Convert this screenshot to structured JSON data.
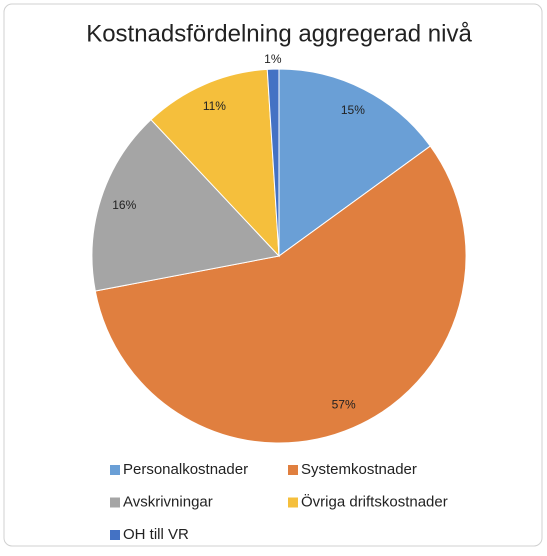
{
  "chart_data": {
    "type": "pie",
    "title": "Kostnadsfördelning aggregerad nivå",
    "categories": [
      "Personalkostnader",
      "Systemkostnader",
      "Avskrivningar",
      "Övriga driftskostnader",
      "OH till VR"
    ],
    "values": [
      15,
      57,
      16,
      11,
      1
    ],
    "value_labels": [
      "15%",
      "57%",
      "16%",
      "11%",
      "1%"
    ],
    "colors": [
      "#6a9fd6",
      "#e07f3f",
      "#a5a5a5",
      "#f5bf3c",
      "#4472c4"
    ],
    "legend": "bottom"
  }
}
